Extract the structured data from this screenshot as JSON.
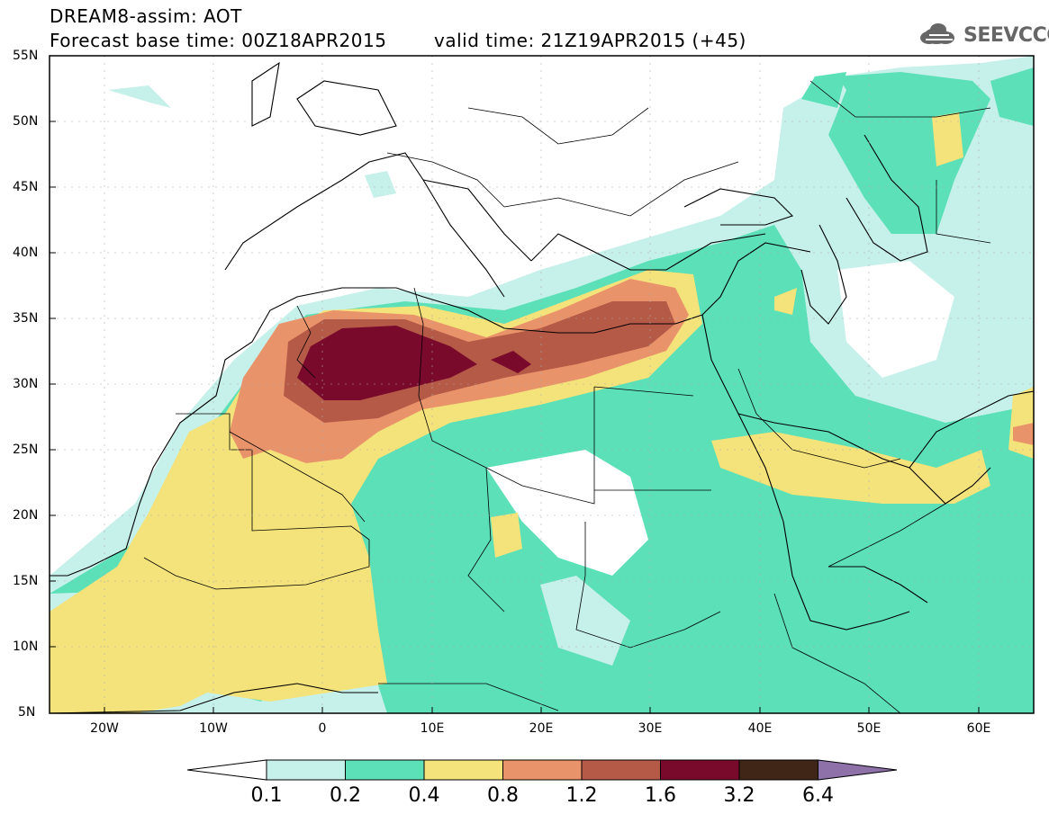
{
  "header": {
    "line1": "DREAM8-assim: AOT",
    "line2": "Forecast base time: 00Z18APR2015",
    "valid": "valid time: 21Z19APR2015 (+45)",
    "logo_text": "SEEVCCC"
  },
  "map": {
    "variable": "Aerosol optical thickness",
    "lon_range": [
      -25,
      65
    ],
    "lat_range": [
      5,
      55
    ],
    "lat_labels": [
      "55N",
      "50N",
      "45N",
      "40N",
      "35N",
      "30N",
      "25N",
      "20N",
      "15N",
      "10N",
      "5N"
    ],
    "lon_labels": [
      "20W",
      "10W",
      "0",
      "10E",
      "20E",
      "30E",
      "40E",
      "50E",
      "60E"
    ]
  },
  "colorbar": {
    "levels": [
      "0.1",
      "0.2",
      "0.4",
      "0.8",
      "1.2",
      "1.6",
      "3.2",
      "6.4"
    ],
    "colors": [
      "#c6f0ea",
      "#5ce0b8",
      "#f4e27a",
      "#e9936a",
      "#b65a48",
      "#7a0a2c",
      "#3f2616",
      "#8e71a9"
    ]
  }
}
